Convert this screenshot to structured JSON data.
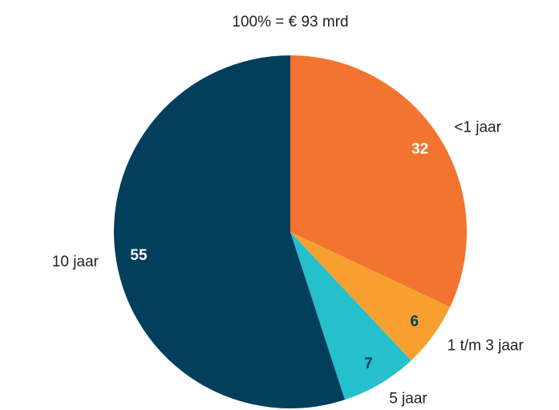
{
  "chart_data": {
    "type": "pie",
    "title": "100% = € 93 mrd",
    "categories": [
      "<1 jaar",
      "1 t/m 3 jaar",
      "5 jaar",
      "10 jaar"
    ],
    "values": [
      32,
      6,
      7,
      55
    ],
    "colors": [
      "#f37430",
      "#f7a030",
      "#26bfcc",
      "#023f5c"
    ],
    "value_label_colors": [
      "#ffffff",
      "#023f5c",
      "#023f5c",
      "#ffffff"
    ]
  }
}
